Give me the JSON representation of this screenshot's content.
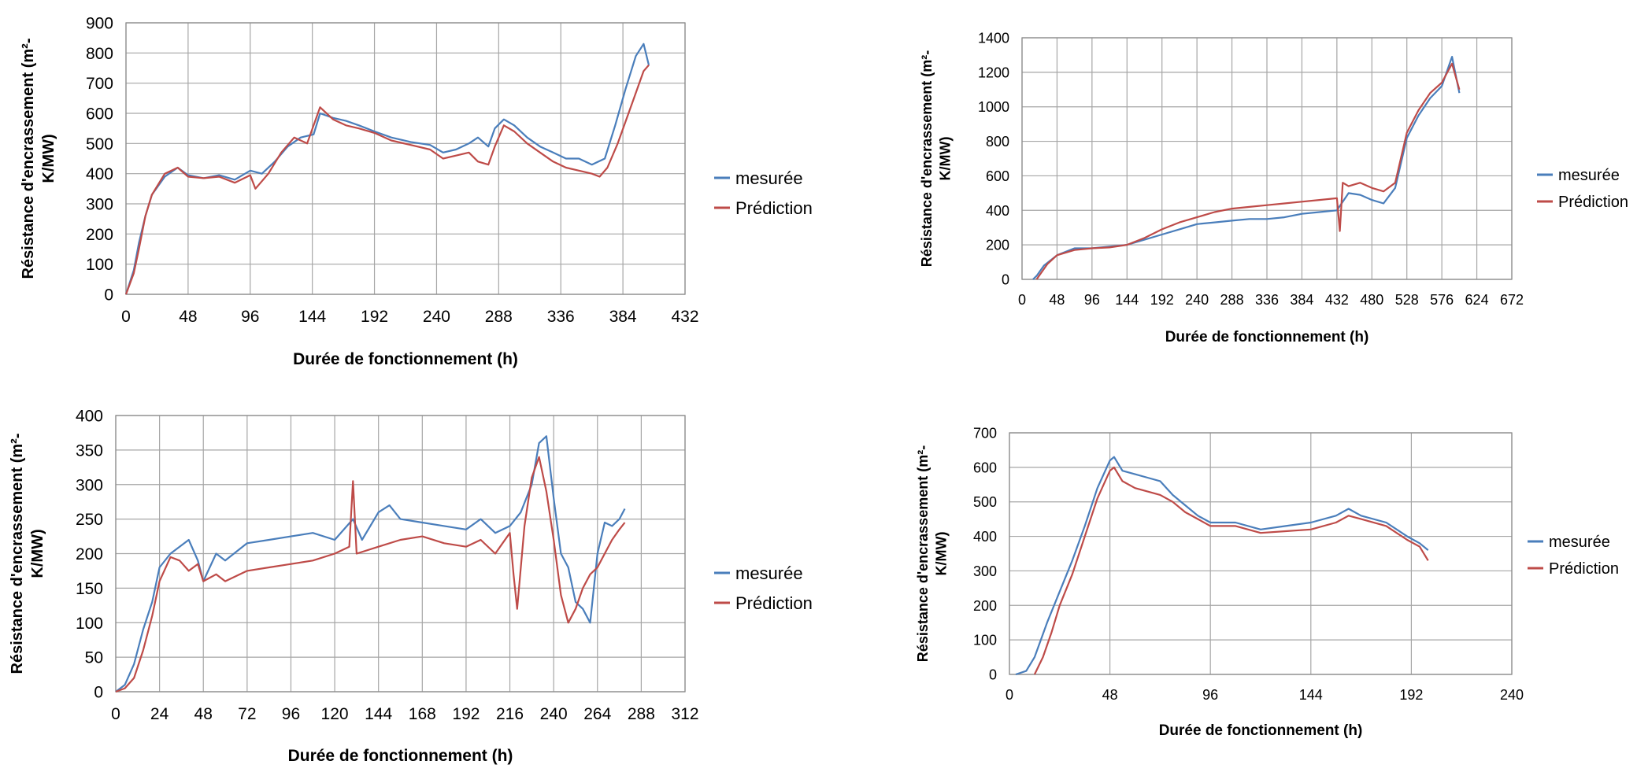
{
  "colors": {
    "measured": "#4a7ebb",
    "prediction": "#be4b48",
    "grid": "#a6a6a6"
  },
  "chart_data": [
    {
      "type": "line",
      "xlabel": "Durée de fonctionnement (h)",
      "ylabel_lines": [
        "Résistance d'encrassement (m²-",
        "K/MW)"
      ],
      "xlim": [
        0,
        432
      ],
      "ylim": [
        0,
        900
      ],
      "xticks": [
        0,
        48,
        96,
        144,
        192,
        240,
        288,
        336,
        384,
        432
      ],
      "yticks": [
        0,
        100,
        200,
        300,
        400,
        500,
        600,
        700,
        800,
        900
      ],
      "grid": true,
      "legend": "right",
      "series": [
        {
          "name": "mesurée",
          "color": "#4a7ebb",
          "x": [
            0,
            6,
            10,
            15,
            20,
            30,
            40,
            48,
            60,
            72,
            84,
            96,
            105,
            115,
            125,
            135,
            145,
            150,
            160,
            170,
            180,
            192,
            205,
            220,
            235,
            245,
            255,
            265,
            272,
            280,
            285,
            292,
            300,
            310,
            320,
            330,
            340,
            350,
            360,
            370,
            378,
            386,
            394,
            400,
            404
          ],
          "y": [
            0,
            80,
            170,
            260,
            330,
            390,
            420,
            395,
            385,
            395,
            380,
            410,
            400,
            440,
            490,
            520,
            530,
            600,
            585,
            575,
            560,
            540,
            520,
            505,
            495,
            470,
            480,
            500,
            520,
            490,
            550,
            580,
            560,
            520,
            490,
            470,
            450,
            450,
            430,
            450,
            560,
            680,
            790,
            830,
            760
          ]
        },
        {
          "name": "Prédiction",
          "color": "#be4b48",
          "x": [
            0,
            6,
            10,
            15,
            20,
            30,
            40,
            48,
            60,
            72,
            84,
            96,
            100,
            110,
            120,
            130,
            140,
            145,
            150,
            160,
            170,
            180,
            192,
            205,
            220,
            235,
            245,
            255,
            265,
            272,
            280,
            285,
            292,
            300,
            310,
            320,
            330,
            340,
            350,
            360,
            366,
            372,
            380,
            390,
            400,
            404
          ],
          "y": [
            0,
            70,
            150,
            260,
            330,
            400,
            420,
            390,
            385,
            390,
            370,
            395,
            350,
            400,
            470,
            520,
            500,
            560,
            620,
            580,
            560,
            550,
            535,
            510,
            495,
            480,
            450,
            460,
            470,
            440,
            430,
            490,
            560,
            540,
            500,
            470,
            440,
            420,
            410,
            400,
            390,
            420,
            500,
            620,
            740,
            760
          ]
        }
      ]
    },
    {
      "type": "line",
      "xlabel": "Durée de fonctionnement (h)",
      "ylabel_lines": [
        "Résistance d'encrassement (m²-",
        "K/MW)"
      ],
      "xlim": [
        0,
        672
      ],
      "ylim": [
        0,
        1400
      ],
      "xticks": [
        0,
        48,
        96,
        144,
        192,
        240,
        288,
        336,
        384,
        432,
        480,
        528,
        576,
        624,
        672
      ],
      "yticks": [
        0,
        200,
        400,
        600,
        800,
        1000,
        1200,
        1400
      ],
      "grid": true,
      "legend": "right",
      "series": [
        {
          "name": "mesurée",
          "color": "#4a7ebb",
          "x": [
            15,
            20,
            30,
            48,
            72,
            96,
            120,
            144,
            168,
            192,
            216,
            240,
            264,
            288,
            312,
            336,
            360,
            384,
            408,
            432,
            448,
            464,
            480,
            496,
            512,
            528,
            544,
            560,
            576,
            590,
            600
          ],
          "y": [
            0,
            20,
            80,
            140,
            180,
            180,
            190,
            200,
            230,
            260,
            290,
            320,
            330,
            340,
            350,
            350,
            360,
            380,
            390,
            400,
            500,
            490,
            460,
            440,
            530,
            820,
            950,
            1050,
            1120,
            1290,
            1080
          ]
        },
        {
          "name": "Prédiction",
          "color": "#be4b48",
          "x": [
            20,
            25,
            35,
            48,
            72,
            96,
            120,
            144,
            168,
            192,
            216,
            240,
            264,
            288,
            312,
            336,
            360,
            384,
            408,
            432,
            436,
            440,
            448,
            464,
            480,
            496,
            512,
            528,
            544,
            560,
            576,
            590,
            600
          ],
          "y": [
            0,
            30,
            90,
            140,
            170,
            180,
            185,
            200,
            240,
            290,
            330,
            360,
            390,
            410,
            420,
            430,
            440,
            450,
            460,
            470,
            280,
            560,
            540,
            560,
            530,
            510,
            560,
            850,
            980,
            1080,
            1140,
            1250,
            1100
          ]
        }
      ]
    },
    {
      "type": "line",
      "xlabel": "Durée de fonctionnement (h)",
      "ylabel_lines": [
        "Résistance d'encrassement (m²-",
        "K/MW)"
      ],
      "xlim": [
        0,
        312
      ],
      "ylim": [
        0,
        400
      ],
      "xticks": [
        0,
        24,
        48,
        72,
        96,
        120,
        144,
        168,
        192,
        216,
        240,
        264,
        288,
        312
      ],
      "yticks": [
        0,
        50,
        100,
        150,
        200,
        250,
        300,
        350,
        400
      ],
      "grid": true,
      "legend": "right",
      "series": [
        {
          "name": "mesurée",
          "color": "#4a7ebb",
          "x": [
            0,
            5,
            10,
            15,
            20,
            24,
            30,
            35,
            40,
            45,
            48,
            55,
            60,
            72,
            84,
            96,
            108,
            120,
            130,
            135,
            144,
            150,
            156,
            168,
            180,
            192,
            200,
            208,
            216,
            222,
            228,
            232,
            236,
            240,
            244,
            248,
            252,
            256,
            260,
            264,
            268,
            272,
            276,
            279
          ],
          "y": [
            0,
            10,
            40,
            90,
            130,
            180,
            200,
            210,
            220,
            190,
            160,
            200,
            190,
            215,
            220,
            225,
            230,
            220,
            250,
            220,
            260,
            270,
            250,
            245,
            240,
            235,
            250,
            230,
            240,
            260,
            300,
            360,
            370,
            280,
            200,
            180,
            130,
            120,
            100,
            200,
            245,
            240,
            250,
            265
          ]
        },
        {
          "name": "Prédiction",
          "color": "#be4b48",
          "x": [
            0,
            5,
            10,
            15,
            20,
            24,
            30,
            35,
            40,
            45,
            48,
            55,
            60,
            72,
            84,
            96,
            108,
            120,
            128,
            130,
            132,
            144,
            156,
            168,
            180,
            192,
            200,
            208,
            216,
            218,
            220,
            224,
            228,
            232,
            236,
            240,
            244,
            248,
            252,
            256,
            260,
            264,
            268,
            272,
            276,
            279
          ],
          "y": [
            0,
            5,
            20,
            60,
            110,
            160,
            195,
            190,
            175,
            185,
            160,
            170,
            160,
            175,
            180,
            185,
            190,
            200,
            210,
            305,
            200,
            210,
            220,
            225,
            215,
            210,
            220,
            200,
            230,
            170,
            120,
            240,
            310,
            340,
            290,
            220,
            140,
            100,
            120,
            150,
            170,
            180,
            200,
            220,
            235,
            245
          ]
        }
      ]
    },
    {
      "type": "line",
      "xlabel": "Durée de fonctionnement (h)",
      "ylabel_lines": [
        "Résistance d'encrassement (m²-",
        "K/MW)"
      ],
      "xlim": [
        0,
        240
      ],
      "ylim": [
        0,
        700
      ],
      "xticks": [
        0,
        48,
        96,
        144,
        192,
        240
      ],
      "yticks": [
        0,
        100,
        200,
        300,
        400,
        500,
        600,
        700
      ],
      "grid": true,
      "legend": "right",
      "series": [
        {
          "name": "mesurée",
          "color": "#4a7ebb",
          "x": [
            3,
            8,
            12,
            18,
            24,
            30,
            36,
            42,
            48,
            50,
            54,
            60,
            66,
            72,
            78,
            84,
            90,
            96,
            108,
            120,
            132,
            144,
            156,
            162,
            168,
            180,
            190,
            196,
            200
          ],
          "y": [
            0,
            10,
            50,
            150,
            240,
            330,
            430,
            540,
            620,
            630,
            590,
            580,
            570,
            560,
            520,
            490,
            460,
            440,
            440,
            420,
            430,
            440,
            460,
            480,
            460,
            440,
            400,
            380,
            360
          ]
        },
        {
          "name": "Prédiction",
          "color": "#be4b48",
          "x": [
            12,
            16,
            20,
            24,
            30,
            36,
            42,
            48,
            50,
            54,
            60,
            66,
            72,
            78,
            84,
            90,
            96,
            108,
            120,
            132,
            144,
            156,
            162,
            168,
            180,
            190,
            196,
            200
          ],
          "y": [
            0,
            50,
            120,
            200,
            290,
            400,
            510,
            590,
            600,
            560,
            540,
            530,
            520,
            500,
            470,
            450,
            430,
            430,
            410,
            415,
            420,
            440,
            460,
            450,
            430,
            390,
            370,
            330
          ]
        }
      ]
    }
  ]
}
